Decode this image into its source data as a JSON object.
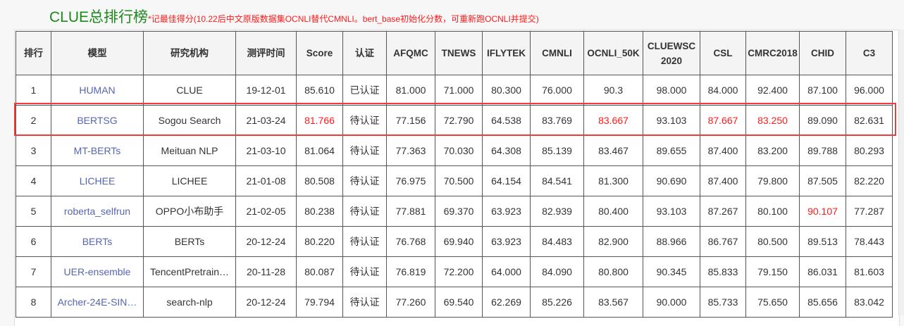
{
  "header": {
    "title": "CLUE总排行榜",
    "note": "*记最佳得分(10.22后中文原版数据集OCNLI替代CMNLI。bert_base初始化分数，可重新跑OCNLI并提交)"
  },
  "columns": [
    "排行",
    "模型",
    "研究机构",
    "测评时间",
    "Score",
    "认证",
    "AFQMC",
    "TNEWS",
    "IFLYTEK",
    "CMNLI",
    "OCNLI_50K",
    "CLUEWSC 2020",
    "CSL",
    "CMRC2018",
    "CHID",
    "C3"
  ],
  "rows": [
    {
      "cells": [
        "1",
        "HUMAN",
        "CLUE",
        "19-12-01",
        "85.610",
        "已认证",
        "81.000",
        "71.000",
        "80.300",
        "76.000",
        "90.3",
        "98.000",
        "84.000",
        "92.400",
        "87.100",
        "96.000"
      ],
      "red": []
    },
    {
      "cells": [
        "2",
        "BERTSG",
        "Sogou Search",
        "21-03-24",
        "81.766",
        "待认证",
        "77.156",
        "72.790",
        "64.538",
        "83.769",
        "83.667",
        "93.103",
        "87.667",
        "83.250",
        "89.090",
        "82.631"
      ],
      "red": [
        4,
        10,
        12,
        13
      ]
    },
    {
      "cells": [
        "3",
        "MT-BERTs",
        "Meituan NLP",
        "21-03-10",
        "81.064",
        "待认证",
        "77.363",
        "70.030",
        "64.308",
        "85.139",
        "83.467",
        "89.655",
        "87.400",
        "83.200",
        "89.788",
        "80.293"
      ],
      "red": []
    },
    {
      "cells": [
        "4",
        "LICHEE",
        "LICHEE",
        "21-01-08",
        "80.508",
        "待认证",
        "76.975",
        "70.500",
        "64.154",
        "84.541",
        "81.300",
        "90.690",
        "87.400",
        "79.800",
        "87.505",
        "82.220"
      ],
      "red": []
    },
    {
      "cells": [
        "5",
        "roberta_selfrun",
        "OPPO小布助手",
        "21-02-05",
        "80.238",
        "待认证",
        "77.881",
        "69.370",
        "63.923",
        "82.939",
        "80.400",
        "93.103",
        "87.267",
        "80.100",
        "90.107",
        "77.287"
      ],
      "red": [
        14
      ]
    },
    {
      "cells": [
        "6",
        "BERTs",
        "BERTs",
        "20-12-24",
        "80.220",
        "待认证",
        "76.768",
        "69.940",
        "63.923",
        "84.483",
        "82.900",
        "88.966",
        "86.767",
        "80.500",
        "89.513",
        "78.443"
      ],
      "red": []
    },
    {
      "cells": [
        "7",
        "UER-ensemble",
        "TencentPretrain…",
        "20-11-28",
        "80.087",
        "待认证",
        "76.819",
        "72.200",
        "64.000",
        "84.090",
        "80.800",
        "90.345",
        "85.833",
        "79.150",
        "86.031",
        "81.603"
      ],
      "red": []
    },
    {
      "cells": [
        "8",
        "Archer-24E-SIN…",
        "search-nlp",
        "20-12-24",
        "79.794",
        "待认证",
        "77.260",
        "69.540",
        "62.269",
        "85.226",
        "83.567",
        "90.000",
        "85.733",
        "75.650",
        "85.656",
        "83.042"
      ],
      "red": []
    }
  ],
  "highlighted_row": 2,
  "colors": {
    "title": "#1a8a1a",
    "note": "#ff1a1a",
    "model_link": "#5566b0",
    "highlight": "#ef3b3b"
  }
}
